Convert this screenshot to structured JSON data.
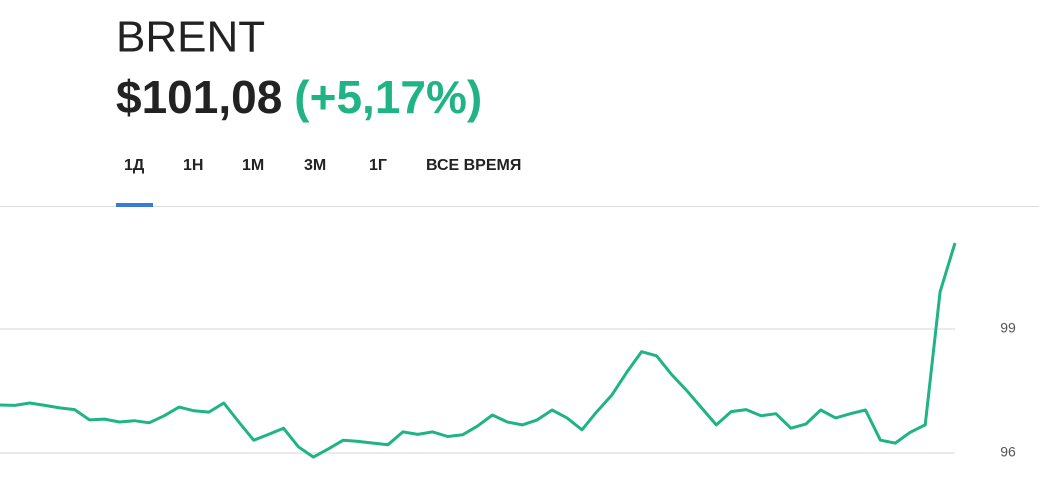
{
  "header": {
    "ticker": "BRENT",
    "price": "$101,08",
    "change": "(+5,17%)"
  },
  "tabs": [
    "1Д",
    "1Н",
    "1М",
    "3М",
    "1Г",
    "ВСЕ ВРЕМЯ"
  ],
  "chart_data": {
    "type": "line",
    "series": [
      {
        "color": "#1fb386",
        "values": [
          97.16,
          97.15,
          97.21,
          97.15,
          97.09,
          97.05,
          96.8,
          96.82,
          96.75,
          96.78,
          96.73,
          96.9,
          97.11,
          97.02,
          96.99,
          97.21,
          96.75,
          96.31,
          96.45,
          96.6,
          96.15,
          95.9,
          96.1,
          96.31,
          96.28,
          96.24,
          96.2,
          96.51,
          96.45,
          96.51,
          96.4,
          96.44,
          96.65,
          96.92,
          96.75,
          96.68,
          96.8,
          97.04,
          96.85,
          96.56,
          97.0,
          97.4,
          97.95,
          98.45,
          98.35,
          97.9,
          97.52,
          97.1,
          96.68,
          97.0,
          97.05,
          96.9,
          96.95,
          96.6,
          96.7,
          97.04,
          96.85,
          96.95,
          97.04,
          96.31,
          96.24,
          96.5,
          96.68,
          99.9,
          101.08
        ]
      }
    ],
    "ylim": [
      95.25,
      101.95
    ],
    "yticks": [
      96,
      99
    ],
    "grid": true
  }
}
